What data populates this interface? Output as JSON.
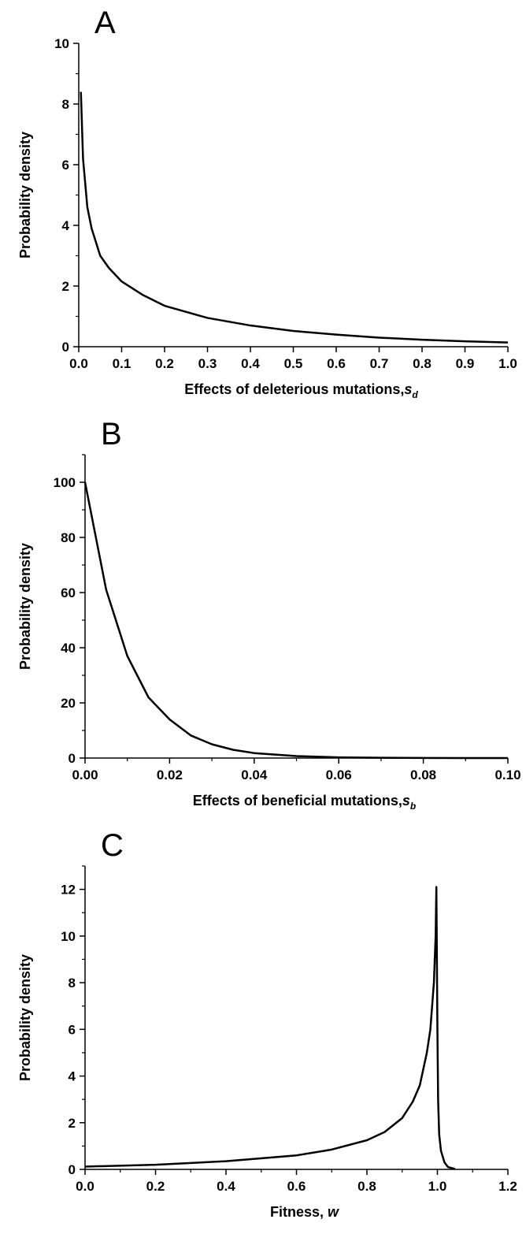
{
  "chart_data": [
    {
      "type": "line",
      "panel": "A",
      "ylabel": "Probability density",
      "xlabel": "Effects of deleterious mutations,",
      "xlabel_symbol": "s",
      "xlabel_subscript": "d",
      "xlim": [
        0,
        1
      ],
      "ylim": [
        0,
        10
      ],
      "xticks": [
        {
          "value": 0,
          "label": "0.0"
        },
        0.1,
        0.2,
        0.3,
        0.4,
        0.5,
        0.6,
        0.7,
        0.8,
        0.9,
        {
          "value": 1,
          "label": "1.0"
        }
      ],
      "yticks": [
        0,
        2,
        4,
        6,
        8,
        10
      ],
      "yminorticks": [
        1,
        3,
        5,
        7,
        9
      ],
      "color": "#000000",
      "x": [
        0.005,
        0.01,
        0.02,
        0.03,
        0.05,
        0.07,
        0.1,
        0.15,
        0.2,
        0.3,
        0.4,
        0.5,
        0.6,
        0.7,
        0.8,
        0.9,
        1.0
      ],
      "values": [
        8.4,
        6.2,
        4.6,
        3.9,
        3.0,
        2.6,
        2.15,
        1.7,
        1.35,
        0.95,
        0.7,
        0.52,
        0.4,
        0.3,
        0.23,
        0.18,
        0.14
      ]
    },
    {
      "type": "line",
      "panel": "B",
      "ylabel": "Probability density",
      "xlabel": "Effects of beneficial mutations,",
      "xlabel_symbol": "s",
      "xlabel_subscript": "b",
      "xlim": [
        0,
        0.1
      ],
      "ylim": [
        0,
        110
      ],
      "xticks": [
        {
          "value": 0,
          "label": "0.00"
        },
        0.02,
        0.04,
        0.06,
        0.08,
        {
          "value": 0.1,
          "label": "0.10"
        }
      ],
      "xminorticks": [
        0.01,
        0.03,
        0.05,
        0.07,
        0.09
      ],
      "yticks": [
        0,
        20,
        40,
        60,
        80,
        100
      ],
      "yminorticks": [
        10,
        30,
        50,
        70,
        90,
        110
      ],
      "color": "#000000",
      "x": [
        0,
        0.005,
        0.01,
        0.015,
        0.02,
        0.025,
        0.03,
        0.035,
        0.04,
        0.05,
        0.06,
        0.07,
        0.08,
        0.09,
        0.1
      ],
      "values": [
        100,
        61,
        37,
        22,
        14,
        8.2,
        5,
        3,
        1.8,
        0.7,
        0.25,
        0.09,
        0.03,
        0.01,
        0.005
      ]
    },
    {
      "type": "line",
      "panel": "C",
      "ylabel": "Probability density",
      "xlabel": "Fitness,",
      "xlabel_symbol": "w",
      "xlim": [
        0,
        1.2
      ],
      "ylim": [
        0,
        13
      ],
      "xticks": [
        {
          "value": 0,
          "label": "0.0"
        },
        0.2,
        0.4,
        0.6,
        0.8,
        {
          "value": 1,
          "label": "1.0"
        },
        1.2
      ],
      "xminorticks": [
        0.1,
        0.3,
        0.5,
        0.7,
        0.9,
        1.1
      ],
      "yticks": [
        0,
        2,
        4,
        6,
        8,
        10,
        12
      ],
      "yminorticks": [
        1,
        3,
        5,
        7,
        9,
        11,
        13
      ],
      "color": "#000000",
      "x": [
        0,
        0.2,
        0.4,
        0.6,
        0.7,
        0.8,
        0.85,
        0.9,
        0.93,
        0.95,
        0.97,
        0.98,
        0.99,
        0.995,
        0.997,
        1.0,
        1.002,
        1.005,
        1.01,
        1.02,
        1.03,
        1.05
      ],
      "values": [
        0.12,
        0.2,
        0.35,
        0.6,
        0.85,
        1.25,
        1.6,
        2.2,
        2.9,
        3.6,
        5,
        6,
        8,
        10,
        12.1,
        6,
        3,
        1.5,
        0.8,
        0.3,
        0.1,
        0.02
      ]
    }
  ]
}
